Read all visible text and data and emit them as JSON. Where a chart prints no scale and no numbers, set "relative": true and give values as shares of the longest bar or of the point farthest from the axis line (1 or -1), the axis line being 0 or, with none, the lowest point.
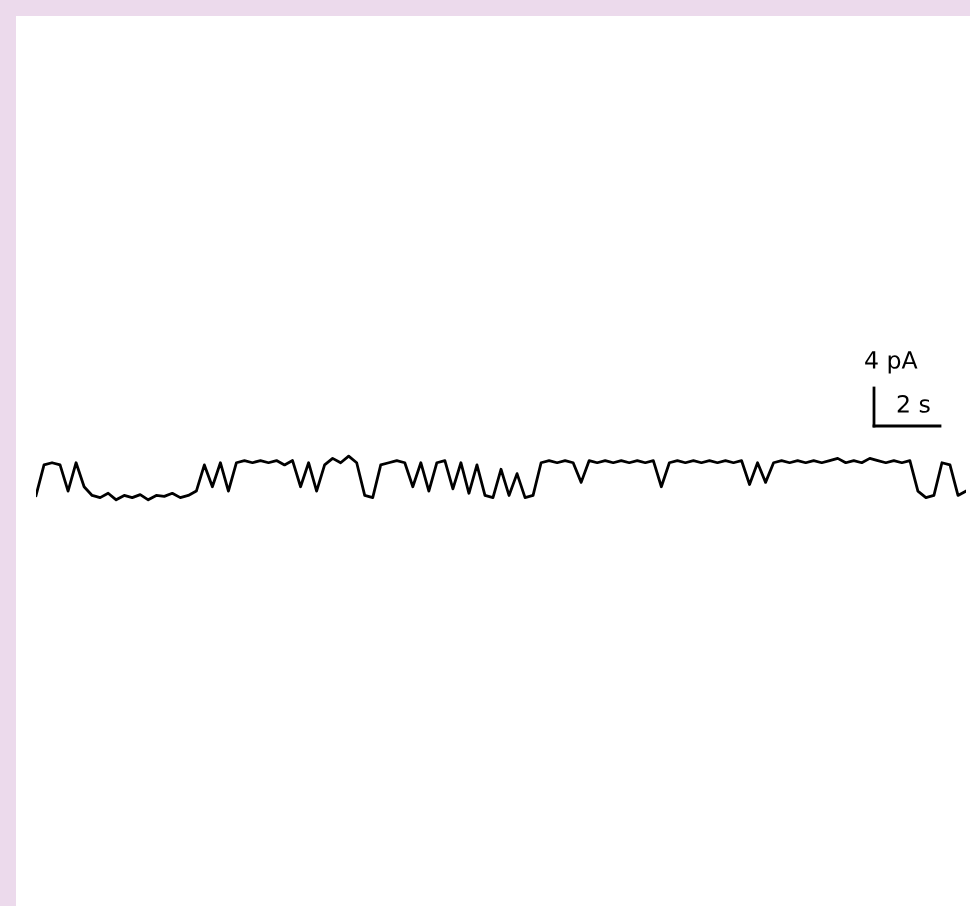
{
  "chart_data": {
    "type": "line",
    "relative": true,
    "color": "#000000",
    "categories": [
      null,
      null,
      null,
      null,
      null,
      null,
      null,
      null,
      null,
      null,
      null,
      null,
      null,
      null,
      null,
      null,
      null,
      null,
      null,
      null,
      null,
      null,
      null,
      null,
      null,
      null,
      null,
      null,
      null,
      null,
      null,
      null,
      null,
      null,
      null,
      null,
      null,
      null,
      null,
      null,
      null,
      null,
      null,
      null,
      null,
      null,
      null,
      null,
      null,
      null,
      null,
      null,
      null,
      null,
      null,
      null,
      null,
      null,
      null,
      null,
      null,
      null,
      null,
      null,
      null,
      null,
      null,
      null,
      null,
      null,
      null,
      null,
      null,
      null,
      null,
      null,
      null,
      null,
      null,
      null,
      null,
      null,
      null,
      null,
      null,
      null,
      null,
      null,
      null,
      null,
      null,
      null,
      null,
      null,
      null,
      null,
      null,
      null,
      null,
      null,
      null,
      null,
      null,
      null,
      null,
      null,
      null,
      null,
      null,
      null,
      null,
      null,
      null,
      null,
      null,
      null,
      null
    ],
    "values": [
      0.1,
      0.8,
      0.85,
      0.8,
      0.2,
      0.85,
      0.3,
      0.1,
      0.05,
      0.15,
      0.0,
      0.1,
      0.05,
      0.12,
      0.0,
      0.1,
      0.08,
      0.15,
      0.05,
      0.1,
      0.2,
      0.8,
      0.3,
      0.85,
      0.2,
      0.85,
      0.9,
      0.85,
      0.9,
      0.85,
      0.9,
      0.8,
      0.9,
      0.3,
      0.85,
      0.2,
      0.8,
      0.95,
      0.85,
      1.0,
      0.85,
      0.1,
      0.05,
      0.8,
      0.85,
      0.9,
      0.85,
      0.3,
      0.85,
      0.2,
      0.85,
      0.9,
      0.25,
      0.85,
      0.15,
      0.8,
      0.1,
      0.05,
      0.7,
      0.1,
      0.6,
      0.05,
      0.1,
      0.85,
      0.9,
      0.85,
      0.9,
      0.85,
      0.4,
      0.9,
      0.85,
      0.9,
      0.85,
      0.9,
      0.85,
      0.9,
      0.85,
      0.9,
      0.3,
      0.85,
      0.9,
      0.85,
      0.9,
      0.85,
      0.9,
      0.85,
      0.9,
      0.85,
      0.9,
      0.35,
      0.85,
      0.4,
      0.85,
      0.9,
      0.85,
      0.9,
      0.85,
      0.9,
      0.85,
      0.9,
      0.95,
      0.85,
      0.9,
      0.85,
      0.95,
      0.9,
      0.85,
      0.9,
      0.85,
      0.9,
      0.2,
      0.05,
      0.1,
      0.85,
      0.8,
      0.1,
      0.2
    ],
    "annotations": [
      "4 pA",
      "2 s"
    ]
  }
}
